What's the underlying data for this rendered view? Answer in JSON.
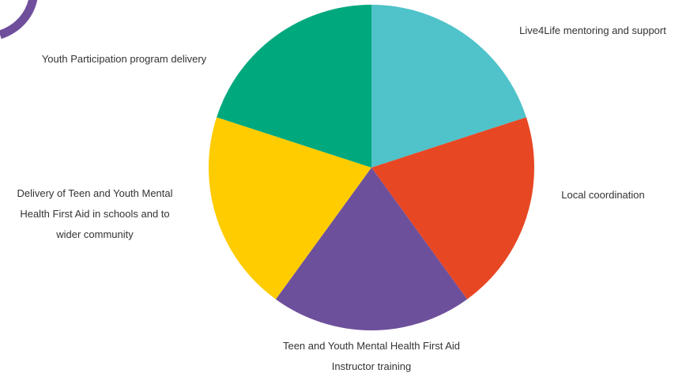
{
  "decoration": {
    "corner_arc_color": "#6f4f9c"
  },
  "chart_data": {
    "type": "pie",
    "start_angle": "12 o'clock",
    "direction": "clockwise",
    "slices": [
      {
        "label_lines": [
          "Live4Life mentoring and support"
        ],
        "value": 20,
        "color": "#4fc3c9"
      },
      {
        "label_lines": [
          "Local coordination"
        ],
        "value": 20,
        "color": "#e84724"
      },
      {
        "label_lines": [
          "Teen and Youth Mental Health First Aid",
          "Instructor training"
        ],
        "value": 20,
        "color": "#6d509b"
      },
      {
        "label_lines": [
          "Delivery of Teen and Youth Mental",
          "Health First Aid in schools and to",
          "wider community"
        ],
        "value": 20,
        "color": "#ffcc00"
      },
      {
        "label_lines": [
          "Youth Participation program delivery"
        ],
        "value": 20,
        "color": "#00a87e"
      }
    ]
  }
}
